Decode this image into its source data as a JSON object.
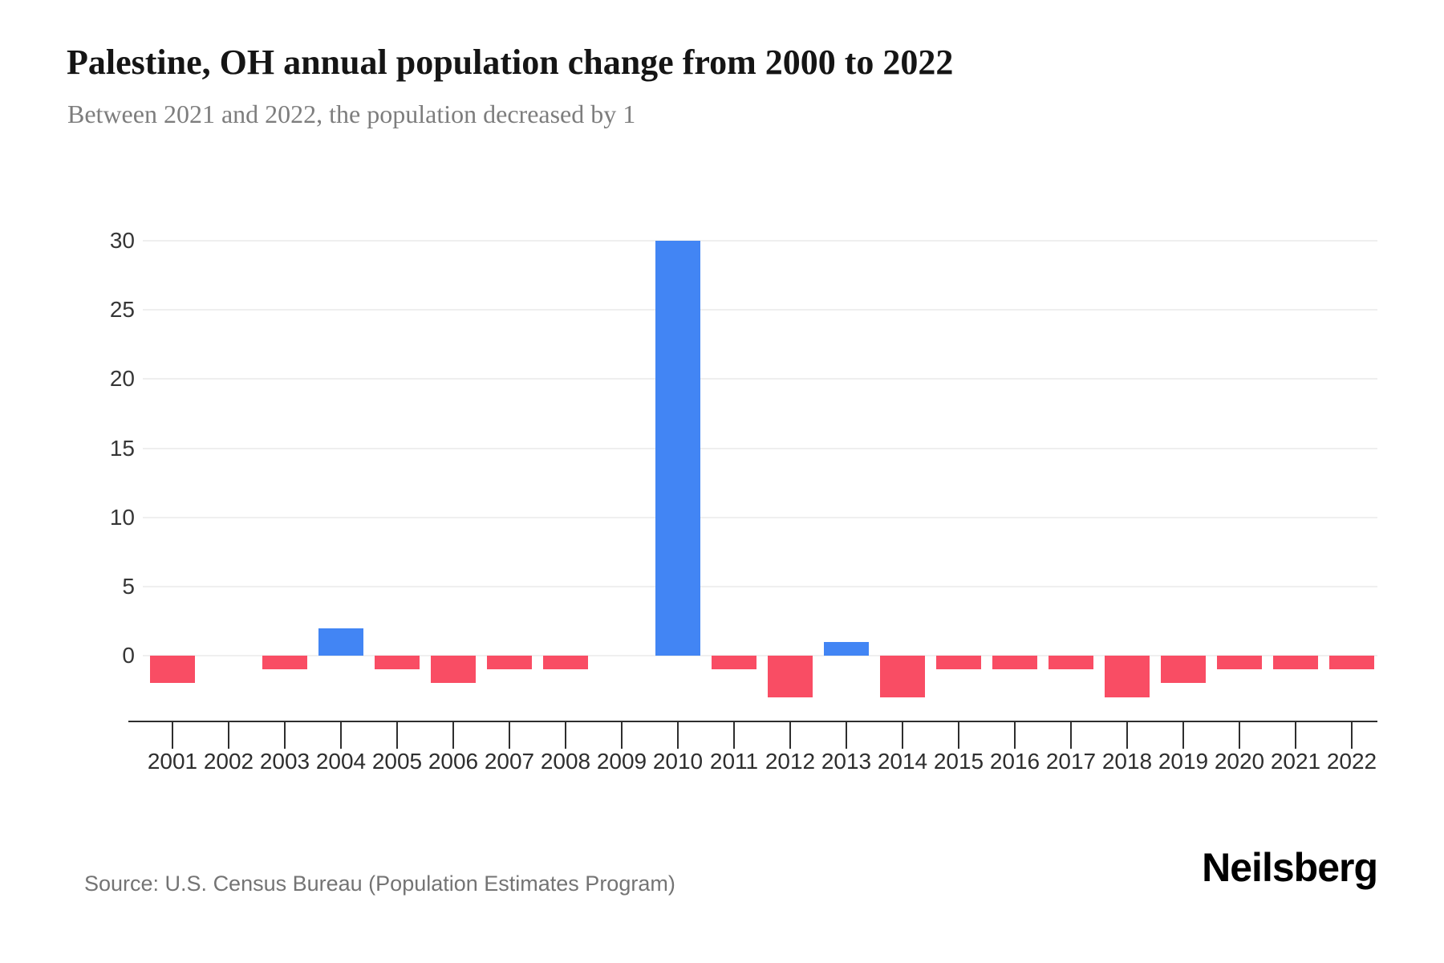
{
  "header": {
    "title": "Palestine, OH annual population change from 2000 to 2022",
    "subtitle": "Between 2021 and 2022, the population decreased by 1"
  },
  "footer": {
    "source": "Source: U.S. Census Bureau (Population Estimates Program)",
    "logo": "Neilsberg"
  },
  "colors": {
    "positive": "#4285F4",
    "negative": "#F94D64",
    "gridline": "#efefef",
    "axis": "#2e2e2e"
  },
  "chart_data": {
    "type": "bar",
    "title": "Palestine, OH annual population change from 2000 to 2022",
    "subtitle": "Between 2021 and 2022, the population decreased by 1",
    "categories": [
      "2001",
      "2002",
      "2003",
      "2004",
      "2005",
      "2006",
      "2007",
      "2008",
      "2009",
      "2010",
      "2011",
      "2012",
      "2013",
      "2014",
      "2015",
      "2016",
      "2017",
      "2018",
      "2019",
      "2020",
      "2021",
      "2022"
    ],
    "values": [
      -2,
      0,
      -1,
      2,
      -1,
      -2,
      -1,
      -1,
      0,
      30,
      -1,
      -3,
      1,
      -3,
      -1,
      -1,
      -1,
      -3,
      -2,
      -1,
      -1,
      -1
    ],
    "xlabel": "",
    "ylabel": "",
    "yticks": [
      0,
      5,
      10,
      15,
      20,
      25,
      30
    ],
    "ylim": [
      -4,
      32
    ],
    "grid": true,
    "legend": false,
    "positive_color": "#4285F4",
    "negative_color": "#F94D64"
  }
}
